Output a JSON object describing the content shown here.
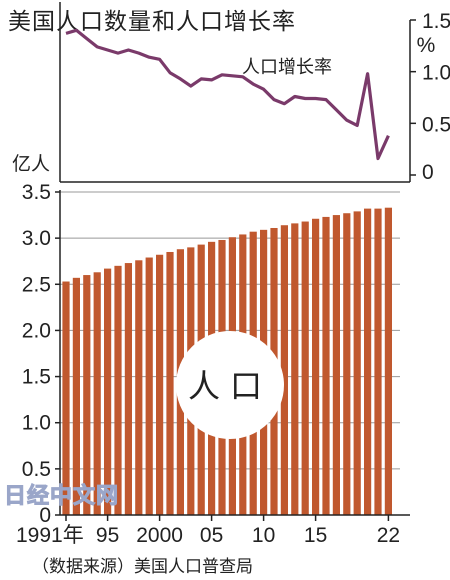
{
  "title": "美国人口数量和人口增长率",
  "source": "（数据来源）美国人口普查局",
  "watermark": "日经中文网",
  "chart_data": [
    {
      "type": "line",
      "name": "人口增长率",
      "series_label": "人口增长率",
      "unit": "%",
      "ylim": [
        0,
        1.5
      ],
      "yticks": [
        "1.5",
        "1.0",
        "0.5",
        "0"
      ],
      "x": [
        1991,
        1992,
        1993,
        1994,
        1995,
        1996,
        1997,
        1998,
        1999,
        2000,
        2001,
        2002,
        2003,
        2004,
        2005,
        2006,
        2007,
        2008,
        2009,
        2010,
        2011,
        2012,
        2013,
        2014,
        2015,
        2016,
        2017,
        2018,
        2019,
        2020,
        2021,
        2022
      ],
      "values": [
        1.37,
        1.4,
        1.32,
        1.24,
        1.21,
        1.18,
        1.21,
        1.18,
        1.14,
        1.12,
        0.99,
        0.93,
        0.86,
        0.93,
        0.92,
        0.97,
        0.96,
        0.95,
        0.88,
        0.83,
        0.73,
        0.69,
        0.76,
        0.74,
        0.74,
        0.73,
        0.63,
        0.53,
        0.48,
        0.98,
        0.16,
        0.38
      ],
      "color": "#7a3a6a"
    },
    {
      "type": "bar",
      "name": "人口",
      "series_label": "人口",
      "unit": "亿人",
      "ylim": [
        0,
        3.5
      ],
      "yticks": [
        "3.5",
        "3.0",
        "2.5",
        "2.0",
        "1.5",
        "1.0",
        "0.5",
        "0"
      ],
      "xticks": [
        "1991年",
        "95",
        "2000",
        "05",
        "10",
        "15",
        "22"
      ],
      "x": [
        1991,
        1992,
        1993,
        1994,
        1995,
        1996,
        1997,
        1998,
        1999,
        2000,
        2001,
        2002,
        2003,
        2004,
        2005,
        2006,
        2007,
        2008,
        2009,
        2010,
        2011,
        2012,
        2013,
        2014,
        2015,
        2016,
        2017,
        2018,
        2019,
        2020,
        2021,
        2022
      ],
      "values": [
        2.53,
        2.57,
        2.6,
        2.63,
        2.67,
        2.7,
        2.73,
        2.76,
        2.79,
        2.82,
        2.85,
        2.88,
        2.9,
        2.93,
        2.96,
        2.98,
        3.01,
        3.04,
        3.07,
        3.09,
        3.11,
        3.14,
        3.16,
        3.18,
        3.21,
        3.23,
        3.25,
        3.27,
        3.29,
        3.32,
        3.32,
        3.33
      ],
      "color": "#c0582e"
    }
  ]
}
